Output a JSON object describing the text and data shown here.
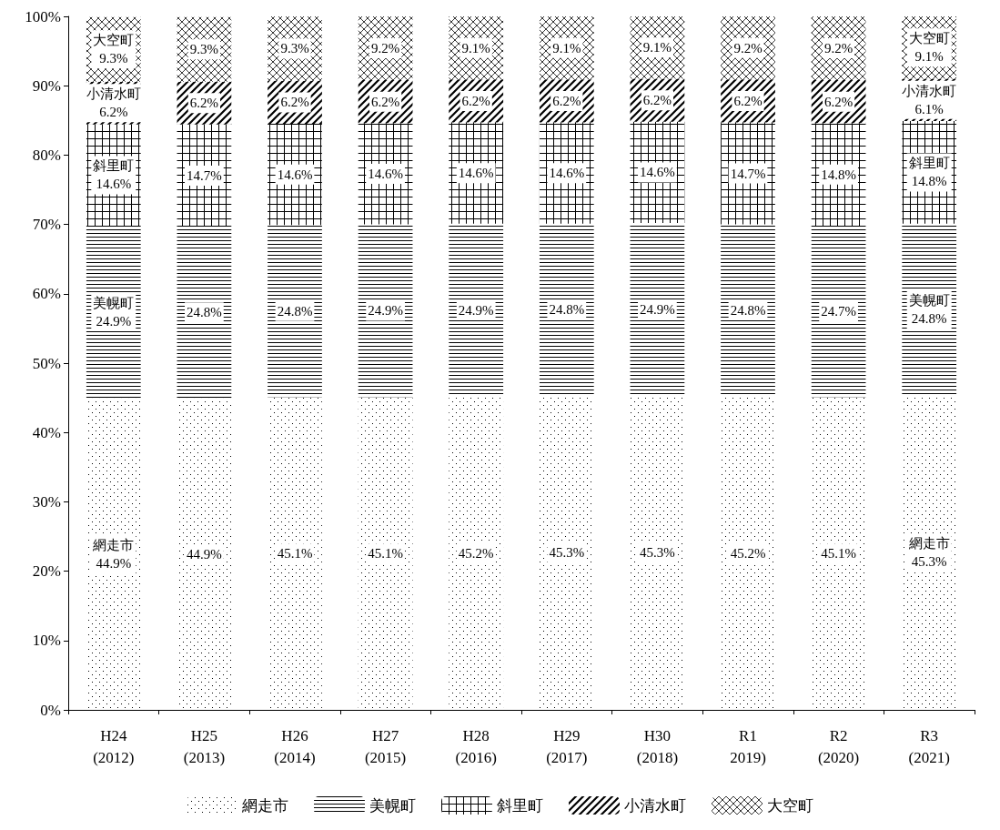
{
  "chart_data": {
    "type": "bar",
    "stacked": true,
    "categories": [
      "H24\n(2012)",
      "H25\n(2013)",
      "H26\n(2014)",
      "H27\n(2015)",
      "H28\n(2016)",
      "H29\n(2017)",
      "H30\n(2018)",
      "R1\n2019)",
      "R2\n(2020)",
      "R3\n(2021)"
    ],
    "series": [
      {
        "name": "網走市",
        "color": "#ffffff",
        "values": [
          44.9,
          44.9,
          45.1,
          45.1,
          45.2,
          45.3,
          45.3,
          45.2,
          45.1,
          45.3
        ],
        "value_labels": [
          "網走市\n44.9%",
          "44.9%",
          "45.1%",
          "45.1%",
          "45.2%",
          "45.3%",
          "45.3%",
          "45.2%",
          "45.1%",
          "網走市\n45.3%"
        ]
      },
      {
        "name": "美幌町",
        "color": "#ffffff",
        "values": [
          24.9,
          24.8,
          24.8,
          24.9,
          24.9,
          24.8,
          24.9,
          24.8,
          24.7,
          24.8
        ],
        "value_labels": [
          "美幌町\n24.9%",
          "24.8%",
          "24.8%",
          "24.9%",
          "24.9%",
          "24.8%",
          "24.9%",
          "24.8%",
          "24.7%",
          "美幌町\n24.8%"
        ]
      },
      {
        "name": "斜里町",
        "color": "#ffffff",
        "values": [
          14.6,
          14.7,
          14.6,
          14.6,
          14.6,
          14.6,
          14.6,
          14.7,
          14.8,
          14.8
        ],
        "value_labels": [
          "斜里町\n14.6%",
          "14.7%",
          "14.6%",
          "14.6%",
          "14.6%",
          "14.6%",
          "14.6%",
          "14.7%",
          "14.8%",
          "斜里町\n14.8%"
        ]
      },
      {
        "name": "小清水町",
        "color": "#ffffff",
        "values": [
          6.2,
          6.2,
          6.2,
          6.2,
          6.2,
          6.2,
          6.2,
          6.2,
          6.2,
          6.1
        ],
        "value_labels": [
          "小清水町\n6.2%",
          "6.2%",
          "6.2%",
          "6.2%",
          "6.2%",
          "6.2%",
          "6.2%",
          "6.2%",
          "6.2%",
          "小清水町\n6.1%"
        ]
      },
      {
        "name": "大空町",
        "color": "#ffffff",
        "values": [
          9.3,
          9.3,
          9.3,
          9.2,
          9.1,
          9.1,
          9.1,
          9.2,
          9.2,
          9.1
        ],
        "value_labels": [
          "大空町\n9.3%",
          "9.3%",
          "9.3%",
          "9.2%",
          "9.1%",
          "9.1%",
          "9.1%",
          "9.2%",
          "9.2%",
          "大空町\n9.1%"
        ]
      }
    ],
    "ylim": [
      0,
      100
    ],
    "yticks": [
      {
        "value": 0,
        "label": "0%"
      },
      {
        "value": 10,
        "label": "10%"
      },
      {
        "value": 20,
        "label": "20%"
      },
      {
        "value": 30,
        "label": "30%"
      },
      {
        "value": 40,
        "label": "40%"
      },
      {
        "value": 50,
        "label": "50%"
      },
      {
        "value": 60,
        "label": "60%"
      },
      {
        "value": 70,
        "label": "70%"
      },
      {
        "value": 80,
        "label": "80%"
      },
      {
        "value": 90,
        "label": "90%"
      },
      {
        "value": 100,
        "label": "100%"
      }
    ],
    "grid": false,
    "legend": "bottom"
  }
}
